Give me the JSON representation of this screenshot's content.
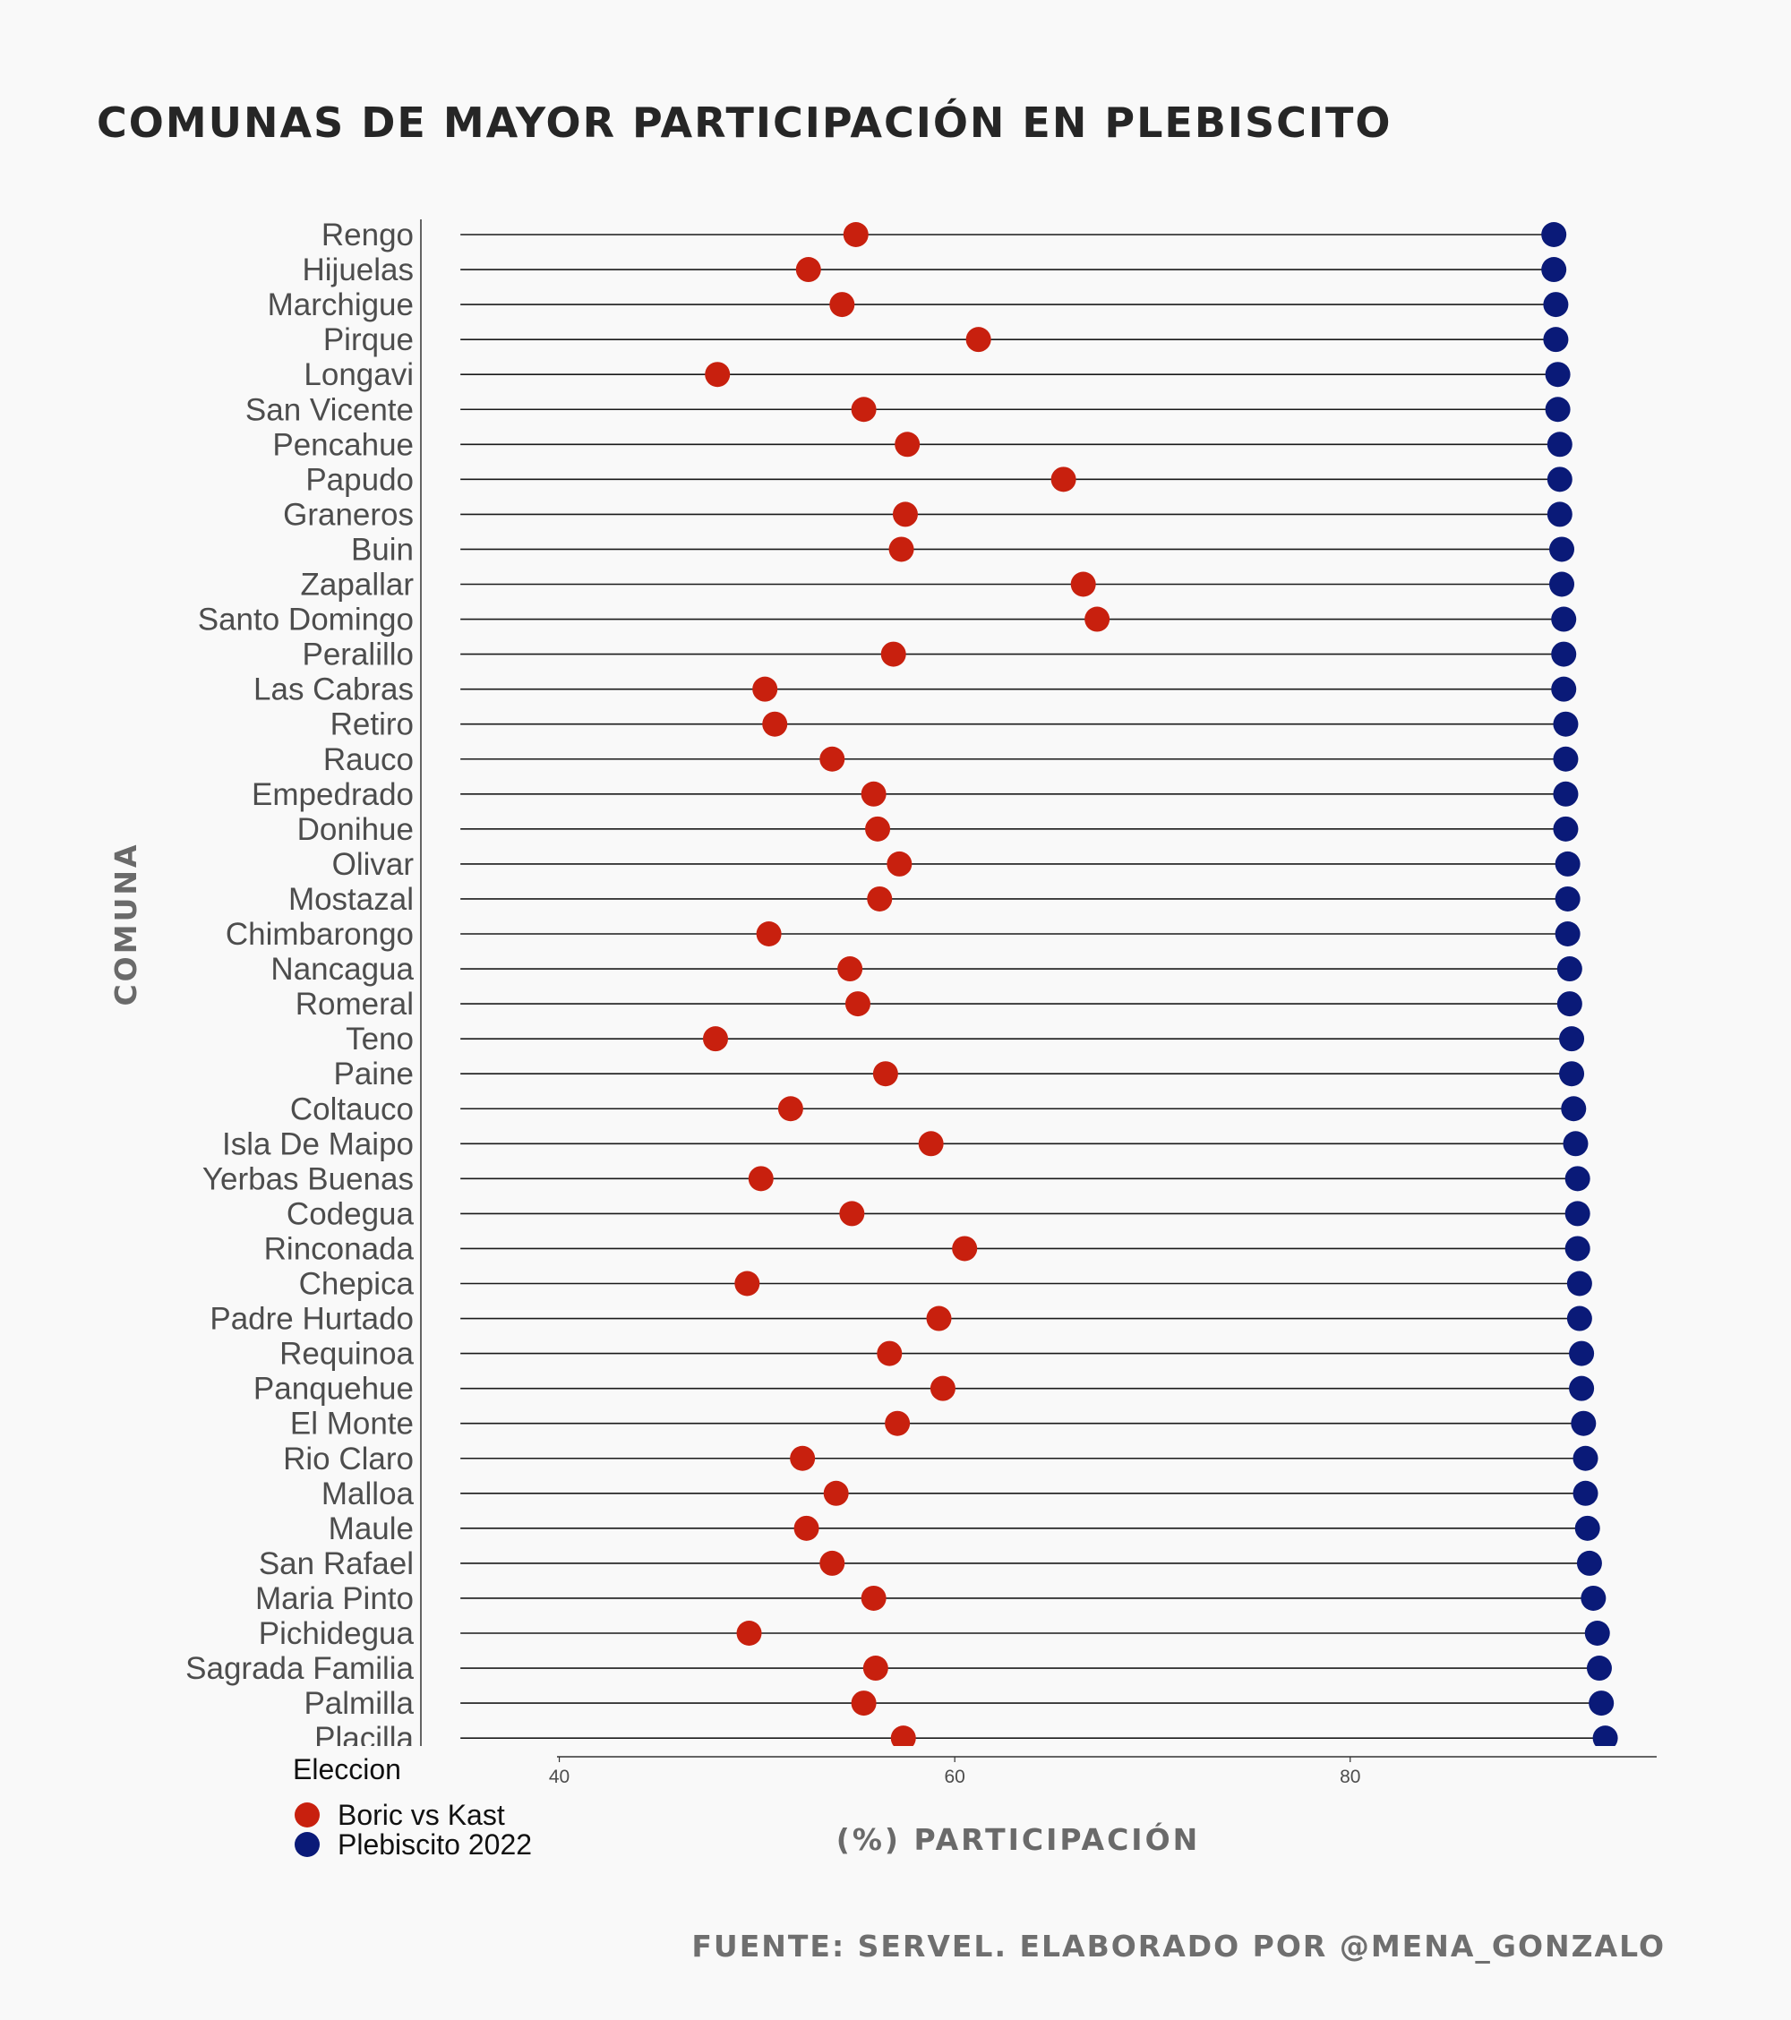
{
  "chart_data": {
    "type": "dumbbell",
    "title": "COMUNAS DE MAYOR PARTICIPACIÓN EN PLEBISCITO",
    "xlabel": "(%) PARTICIPACIÓN",
    "ylabel": "COMUNA",
    "source": "FUENTE: SERVEL. ELABORADO POR @MENA_GONZALO",
    "xlim": [
      33,
      95.5
    ],
    "xticks": [
      40,
      60,
      80
    ],
    "segment_start": 35,
    "grid": false,
    "legend": {
      "title": "Eleccion",
      "position": "bottom-left",
      "items": [
        {
          "label": "Boric vs Kast",
          "color": "#c8200e"
        },
        {
          "label": "Plebiscito 2022",
          "color": "#0a1a78"
        }
      ]
    },
    "categories": [
      "Rengo",
      "Hijuelas",
      "Marchigue",
      "Pirque",
      "Longavi",
      "San Vicente",
      "Pencahue",
      "Papudo",
      "Graneros",
      "Buin",
      "Zapallar",
      "Santo Domingo",
      "Peralillo",
      "Las Cabras",
      "Retiro",
      "Rauco",
      "Empedrado",
      "Donihue",
      "Olivar",
      "Mostazal",
      "Chimbarongo",
      "Nancagua",
      "Romeral",
      "Teno",
      "Paine",
      "Coltauco",
      "Isla De Maipo",
      "Yerbas Buenas",
      "Codegua",
      "Rinconada",
      "Chepica",
      "Padre Hurtado",
      "Requinoa",
      "Panquehue",
      "El Monte",
      "Rio Claro",
      "Malloa",
      "Maule",
      "San Rafael",
      "Maria Pinto",
      "Pichidegua",
      "Sagrada Familia",
      "Palmilla",
      "Placilla"
    ],
    "series": [
      {
        "name": "Boric vs Kast",
        "color": "#c8200e",
        "values": [
          55.0,
          52.6,
          54.3,
          61.2,
          48.0,
          55.4,
          57.6,
          65.5,
          57.5,
          57.3,
          66.5,
          67.2,
          56.9,
          50.4,
          50.9,
          53.8,
          55.9,
          56.1,
          57.2,
          56.2,
          50.6,
          54.7,
          55.1,
          47.9,
          56.5,
          51.7,
          58.8,
          50.2,
          54.8,
          60.5,
          49.5,
          59.2,
          56.7,
          59.4,
          57.1,
          52.3,
          54.0,
          52.5,
          53.8,
          55.9,
          49.6,
          56.0,
          55.4,
          57.4
        ]
      },
      {
        "name": "Plebiscito 2022",
        "color": "#0a1a78",
        "values": [
          90.3,
          90.3,
          90.4,
          90.4,
          90.5,
          90.5,
          90.6,
          90.6,
          90.6,
          90.7,
          90.7,
          90.8,
          90.8,
          90.8,
          90.9,
          90.9,
          90.9,
          90.9,
          91.0,
          91.0,
          91.0,
          91.1,
          91.1,
          91.2,
          91.2,
          91.3,
          91.4,
          91.5,
          91.5,
          91.5,
          91.6,
          91.6,
          91.7,
          91.7,
          91.8,
          91.9,
          91.9,
          92.0,
          92.1,
          92.3,
          92.5,
          92.6,
          92.7,
          92.9
        ]
      }
    ]
  }
}
